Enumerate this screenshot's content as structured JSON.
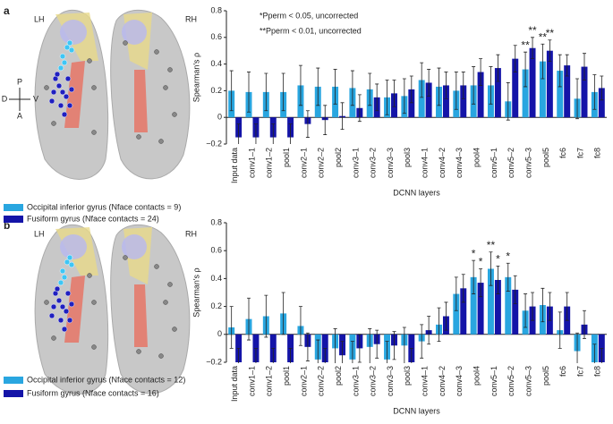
{
  "panels": [
    {
      "label": "a",
      "left": "LH",
      "right": "RH",
      "compass": {
        "P": "P",
        "A": "A",
        "D": "D",
        "V": "V"
      }
    },
    {
      "label": "b",
      "left": "LH",
      "right": "RH"
    }
  ],
  "chart_data": [
    {
      "type": "bar",
      "ylabel": "Spearman's ρ",
      "xlabel": "DCNN layers",
      "annotations": [
        "*Pperm < 0.05, uncorrected",
        "**Pperm < 0.01, uncorrected"
      ],
      "categories": [
        "Input data",
        "conv1–1",
        "conv1–2",
        "pool1",
        "conv2–1",
        "conv2–2",
        "pool2",
        "conv3–1",
        "conv3–2",
        "conv3–3",
        "pool3",
        "conv4–1",
        "conv4–2",
        "conv4–3",
        "pool4",
        "conv5–1",
        "conv5–2",
        "conv5–3",
        "pool5",
        "fc6",
        "fc7",
        "fc8"
      ],
      "series": [
        {
          "name": "Occipital inferior gyrus (Nface contacts = 9)",
          "color": "#29a6e0",
          "values": [
            0.2,
            0.19,
            0.19,
            0.19,
            0.24,
            0.23,
            0.23,
            0.22,
            0.21,
            0.15,
            0.16,
            0.28,
            0.23,
            0.2,
            0.24,
            0.24,
            0.12,
            0.36,
            0.42,
            0.35,
            0.14,
            0.19
          ],
          "errors": [
            0.15,
            0.15,
            0.14,
            0.14,
            0.15,
            0.14,
            0.13,
            0.13,
            0.12,
            0.13,
            0.13,
            0.13,
            0.14,
            0.14,
            0.14,
            0.14,
            0.14,
            0.13,
            0.13,
            0.12,
            0.15,
            0.13
          ],
          "stars": [
            null,
            null,
            null,
            null,
            null,
            null,
            null,
            null,
            null,
            null,
            null,
            null,
            null,
            null,
            null,
            null,
            null,
            "**",
            "**",
            null,
            null,
            null
          ]
        },
        {
          "name": "Fusiform gyrus (Nface contacts = 24)",
          "color": "#1414a8",
          "values": [
            -0.15,
            -0.15,
            -0.15,
            -0.15,
            -0.05,
            -0.02,
            0.01,
            0.07,
            0.15,
            0.18,
            0.21,
            0.26,
            0.24,
            0.24,
            0.34,
            0.37,
            0.44,
            0.52,
            0.5,
            0.39,
            0.38,
            0.22
          ],
          "errors": [
            0.1,
            0.1,
            0.1,
            0.1,
            0.1,
            0.11,
            0.1,
            0.1,
            0.1,
            0.1,
            0.1,
            0.1,
            0.1,
            0.1,
            0.1,
            0.1,
            0.1,
            0.08,
            0.08,
            0.08,
            0.1,
            0.09
          ],
          "stars": [
            null,
            null,
            null,
            null,
            null,
            null,
            null,
            null,
            null,
            null,
            null,
            null,
            null,
            null,
            null,
            null,
            null,
            "**",
            "**",
            null,
            null,
            null
          ]
        }
      ],
      "ylim": [
        -0.2,
        0.8
      ],
      "yticks": [
        {
          "value": -0.2,
          "label": "−0.2"
        },
        0,
        0.2,
        0.4,
        0.6,
        0.8
      ]
    },
    {
      "type": "bar",
      "ylabel": "Spearman's ρ",
      "xlabel": "DCNN layers",
      "categories": [
        "Input data",
        "conv1–1",
        "conv1–2",
        "pool1",
        "conv2–1",
        "conv2–2",
        "pool2",
        "conv3–1",
        "conv3–2",
        "conv3–3",
        "pool3",
        "conv4–1",
        "conv4–2",
        "conv4–3",
        "pool4",
        "conv5–1",
        "conv5–2",
        "conv5–3",
        "pool5",
        "fc6",
        "fc7",
        "fc8"
      ],
      "series": [
        {
          "name": "Occipital inferior gyrus (Nface contacts = 12)",
          "color": "#29a6e0",
          "values": [
            0.05,
            0.11,
            0.13,
            0.15,
            0.06,
            -0.18,
            -0.1,
            -0.18,
            -0.09,
            -0.18,
            -0.08,
            -0.05,
            0.07,
            0.29,
            0.41,
            0.47,
            0.41,
            0.17,
            0.21,
            0.03,
            -0.12,
            -0.2
          ],
          "errors": [
            0.15,
            0.15,
            0.15,
            0.15,
            0.14,
            0.14,
            0.14,
            0.13,
            0.13,
            0.13,
            0.13,
            0.12,
            0.12,
            0.12,
            0.12,
            0.12,
            0.1,
            0.12,
            0.12,
            0.13,
            0.13,
            0.13
          ],
          "stars": [
            null,
            null,
            null,
            null,
            null,
            null,
            null,
            null,
            null,
            null,
            null,
            null,
            null,
            null,
            "*",
            "**",
            "*",
            null,
            null,
            null,
            null,
            null
          ]
        },
        {
          "name": "Fusiform gyrus (Nface contacts = 16)",
          "color": "#1414a8",
          "values": [
            -0.2,
            -0.2,
            -0.2,
            -0.2,
            -0.09,
            -0.2,
            -0.15,
            -0.1,
            -0.07,
            -0.08,
            -0.2,
            0.03,
            0.13,
            0.33,
            0.37,
            0.39,
            0.32,
            0.2,
            0.2,
            0.2,
            0.07,
            -0.2
          ],
          "errors": [
            0.1,
            0.1,
            0.1,
            0.1,
            0.1,
            0.1,
            0.1,
            0.1,
            0.1,
            0.1,
            0.1,
            0.1,
            0.1,
            0.1,
            0.1,
            0.1,
            0.1,
            0.1,
            0.1,
            0.1,
            0.1,
            0.1
          ],
          "stars": [
            null,
            null,
            null,
            null,
            null,
            null,
            null,
            null,
            null,
            null,
            null,
            null,
            null,
            null,
            "*",
            "*",
            null,
            null,
            null,
            null,
            null,
            null
          ]
        }
      ],
      "ylim": [
        -0.2,
        0.8
      ],
      "yticks": [
        {
          "value": -0.2,
          "label": "−0.2"
        },
        0,
        0.2,
        0.4,
        0.6,
        0.8
      ]
    }
  ]
}
